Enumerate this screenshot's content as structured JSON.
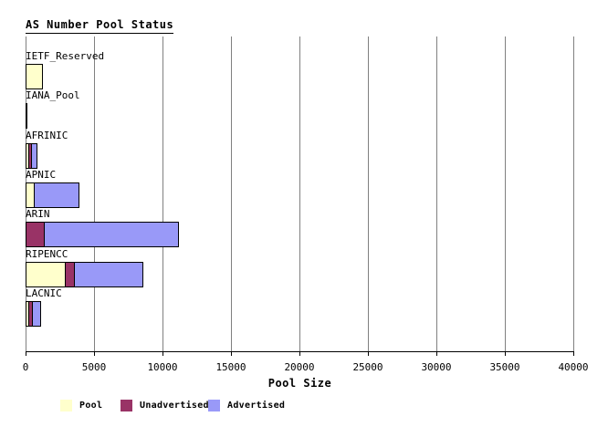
{
  "title": "AS Number Pool Status",
  "chart_data": {
    "type": "bar",
    "orientation": "horizontal",
    "title": "AS Number Pool Status",
    "xlabel": "Pool Size",
    "ylabel": "",
    "xlim": [
      0,
      40000
    ],
    "xticks": [
      0,
      5000,
      10000,
      15000,
      20000,
      25000,
      30000,
      35000,
      40000
    ],
    "grid": "vertical-gray-lines",
    "legend_position": "bottom",
    "categories": [
      "IETF_Reserved",
      "IANA_Pool",
      "AFRINIC",
      "APNIC",
      "ARIN",
      "RIPENCC",
      "LACNIC"
    ],
    "series": [
      {
        "name": "Pool",
        "color": "#FFFFCC",
        "values": [
          1130,
          0,
          100,
          530,
          0,
          2800,
          150
        ]
      },
      {
        "name": "Unadvertised",
        "color": "#993366",
        "values": [
          0,
          0,
          170,
          0,
          1270,
          600,
          170
        ]
      },
      {
        "name": "Advertised",
        "color": "#9999F8",
        "values": [
          0,
          0,
          300,
          3200,
          9730,
          4930,
          550
        ]
      }
    ],
    "totals": [
      1130,
      0,
      570,
      3730,
      11000,
      8330,
      870
    ]
  },
  "colors": {
    "pool": "#FFFFCC",
    "unadvertised": "#993366",
    "advertised": "#9999F8",
    "gridline": "#808080",
    "axis": "#000000",
    "background": "#FFFFFF"
  }
}
